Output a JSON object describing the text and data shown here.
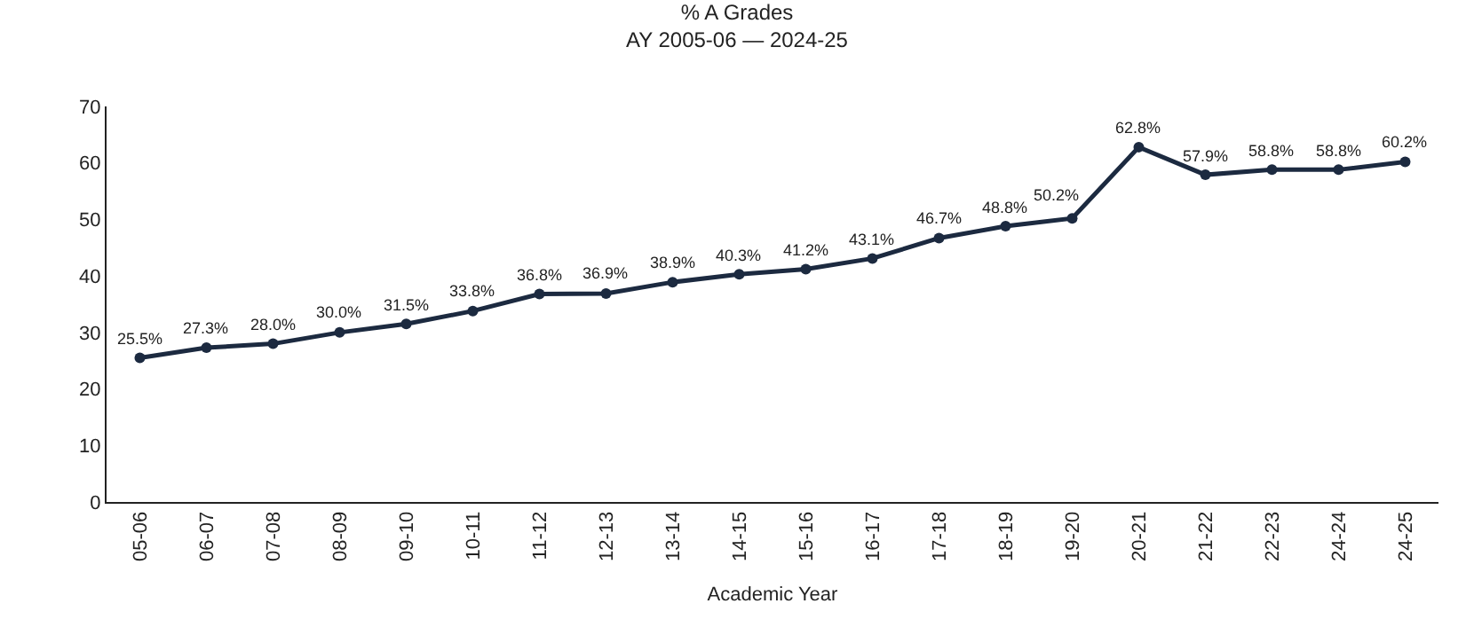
{
  "chart_data": {
    "type": "line",
    "title": "% A Grades",
    "subtitle": "AY 2005-06 — 2024-25",
    "xlabel": "Academic Year",
    "categories": [
      "05-06",
      "06-07",
      "07-08",
      "08-09",
      "09-10",
      "10-11",
      "11-12",
      "12-13",
      "13-14",
      "14-15",
      "15-16",
      "16-17",
      "17-18",
      "18-19",
      "19-20",
      "20-21",
      "21-22",
      "22-23",
      "24-24",
      "24-25"
    ],
    "series": [
      {
        "color": "#1c2a40",
        "values": [
          25.5,
          27.3,
          28.0,
          30.0,
          31.5,
          33.8,
          36.8,
          36.9,
          38.9,
          40.3,
          41.2,
          43.1,
          46.7,
          48.8,
          50.2,
          62.8,
          57.9,
          58.8,
          58.8,
          60.2
        ],
        "value_labels": [
          "25.5%",
          "27.3%",
          "28.0%",
          "30.0%",
          "31.5%",
          "33.8%",
          "36.8%",
          "36.9%",
          "38.9%",
          "40.3%",
          "41.2%",
          "43.1%",
          "46.7%",
          "48.8%",
          "50.2%",
          "62.8%",
          "57.9%",
          "58.8%",
          "58.8%",
          "60.2%"
        ]
      }
    ],
    "ylim": [
      0,
      70
    ],
    "yticks": [
      0,
      10,
      20,
      30,
      40,
      50,
      60,
      70
    ],
    "marker": "circle",
    "line_style": "solid"
  }
}
